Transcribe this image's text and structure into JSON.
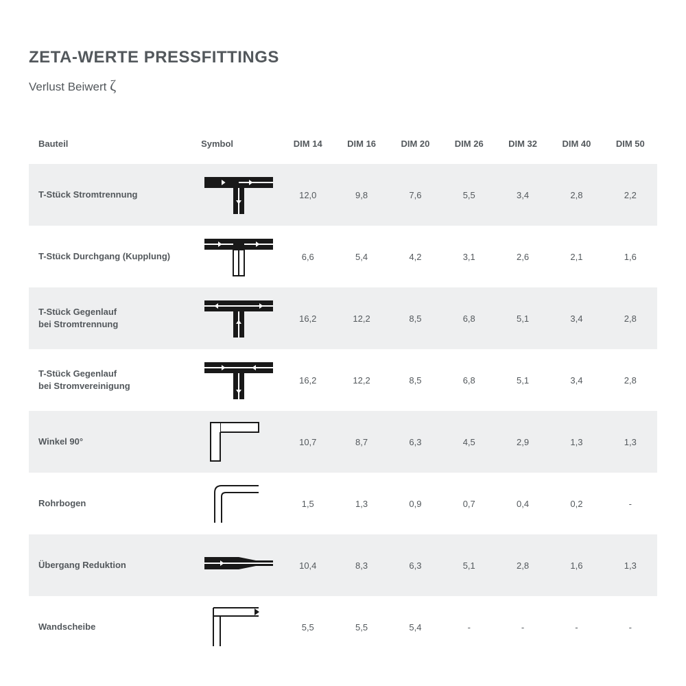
{
  "title": "ZETA-WERTE PRESSFITTINGS",
  "subtitle_prefix": "Verlust Beiwert ",
  "subtitle_symbol": "ζ",
  "columns": {
    "bauteil": "Bauteil",
    "symbol": "Symbol",
    "dims": [
      "DIM 14",
      "DIM 16",
      "DIM 20",
      "DIM 26",
      "DIM 32",
      "DIM 40",
      "DIM 50"
    ]
  },
  "rows": [
    {
      "name": "T-Stück Stromtrennung",
      "symbol": "t-sep",
      "vals": [
        "12,0",
        "9,8",
        "7,6",
        "5,5",
        "3,4",
        "2,8",
        "2,2"
      ]
    },
    {
      "name": "T-Stück Durchgang (Kupplung)",
      "symbol": "t-through",
      "vals": [
        "6,6",
        "5,4",
        "4,2",
        "3,1",
        "2,6",
        "2,1",
        "1,6"
      ]
    },
    {
      "name": "T-Stück Gegenlauf\nbei Stromtrennung",
      "symbol": "t-counter-sep",
      "vals": [
        "16,2",
        "12,2",
        "8,5",
        "6,8",
        "5,1",
        "3,4",
        "2,8"
      ]
    },
    {
      "name": "T-Stück Gegenlauf\nbei Stromvereinigung",
      "symbol": "t-counter-merge",
      "vals": [
        "16,2",
        "12,2",
        "8,5",
        "6,8",
        "5,1",
        "3,4",
        "2,8"
      ]
    },
    {
      "name": "Winkel 90°",
      "symbol": "angle90",
      "vals": [
        "10,7",
        "8,7",
        "6,3",
        "4,5",
        "2,9",
        "1,3",
        "1,3"
      ]
    },
    {
      "name": "Rohrbogen",
      "symbol": "bend",
      "vals": [
        "1,5",
        "1,3",
        "0,9",
        "0,7",
        "0,4",
        "0,2",
        "-"
      ]
    },
    {
      "name": "Übergang Reduktion",
      "symbol": "reducer",
      "vals": [
        "10,4",
        "8,3",
        "6,3",
        "5,1",
        "2,8",
        "1,6",
        "1,3"
      ]
    },
    {
      "name": "Wandscheibe",
      "symbol": "wall",
      "vals": [
        "5,5",
        "5,5",
        "5,4",
        "-",
        "-",
        "-",
        "-"
      ]
    }
  ],
  "style": {
    "bg": "#ffffff",
    "shaded_bg": "#eeeff0",
    "text": "#53585c",
    "symbol_stroke": "#191919",
    "title_fontsize": 24,
    "body_fontsize": 13
  }
}
